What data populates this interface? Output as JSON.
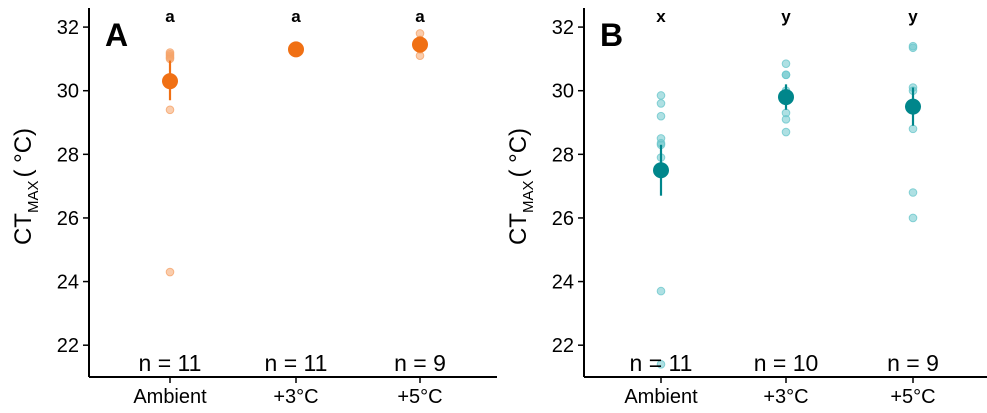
{
  "chart_data": [
    {
      "type": "scatter",
      "panel_label": "A",
      "ylabel_main": "CT",
      "ylabel_sub": "MAX",
      "ylabel_unit": "( °C)",
      "ylim": [
        21,
        32.6
      ],
      "yticks": [
        "22",
        "24",
        "26",
        "28",
        "30",
        "32"
      ],
      "categories": [
        "Ambient",
        "+3°C",
        "+5°C"
      ],
      "colors": {
        "point": "#f07014",
        "raw": "#f5a46a"
      },
      "groups": [
        {
          "category": "Ambient",
          "mean": 30.3,
          "lower": 29.7,
          "upper": 30.95,
          "letter": "a",
          "n": "n = 11",
          "raw": [
            31.2,
            31.15,
            31.1,
            31.05,
            31.0,
            29.4,
            24.3
          ]
        },
        {
          "category": "+3°C",
          "mean": 31.3,
          "lower": 31.2,
          "upper": 31.4,
          "letter": "a",
          "n": "n = 11",
          "raw": [
            31.35,
            31.3,
            31.3,
            31.25,
            31.2
          ]
        },
        {
          "category": "+5°C",
          "mean": 31.45,
          "lower": 31.2,
          "upper": 31.7,
          "letter": "a",
          "n": "n = 9",
          "raw": [
            31.8,
            31.6,
            31.5,
            31.3,
            31.1
          ]
        }
      ]
    },
    {
      "type": "scatter",
      "panel_label": "B",
      "ylabel_main": "CT",
      "ylabel_sub": "MAX",
      "ylabel_unit": "( °C)",
      "ylim": [
        21,
        32.6
      ],
      "yticks": [
        "22",
        "24",
        "26",
        "28",
        "30",
        "32"
      ],
      "categories": [
        "Ambient",
        "+3°C",
        "+5°C"
      ],
      "colors": {
        "point": "#00868b",
        "raw": "#6cc7cc"
      },
      "groups": [
        {
          "category": "Ambient",
          "mean": 27.5,
          "lower": 26.7,
          "upper": 28.3,
          "letter": "x",
          "n": "n = 11",
          "raw": [
            29.85,
            29.6,
            29.2,
            28.5,
            28.35,
            28.3,
            27.9,
            23.7,
            21.4
          ]
        },
        {
          "category": "+3°C",
          "mean": 29.8,
          "lower": 29.4,
          "upper": 30.2,
          "letter": "y",
          "n": "n = 10",
          "raw": [
            30.85,
            30.5,
            30.5,
            30.0,
            29.3,
            29.1,
            28.7
          ]
        },
        {
          "category": "+5°C",
          "mean": 29.5,
          "lower": 28.9,
          "upper": 30.1,
          "letter": "y",
          "n": "n = 9",
          "raw": [
            31.4,
            31.35,
            30.1,
            30.0,
            29.4,
            28.8,
            26.8,
            26.0
          ]
        }
      ]
    }
  ]
}
